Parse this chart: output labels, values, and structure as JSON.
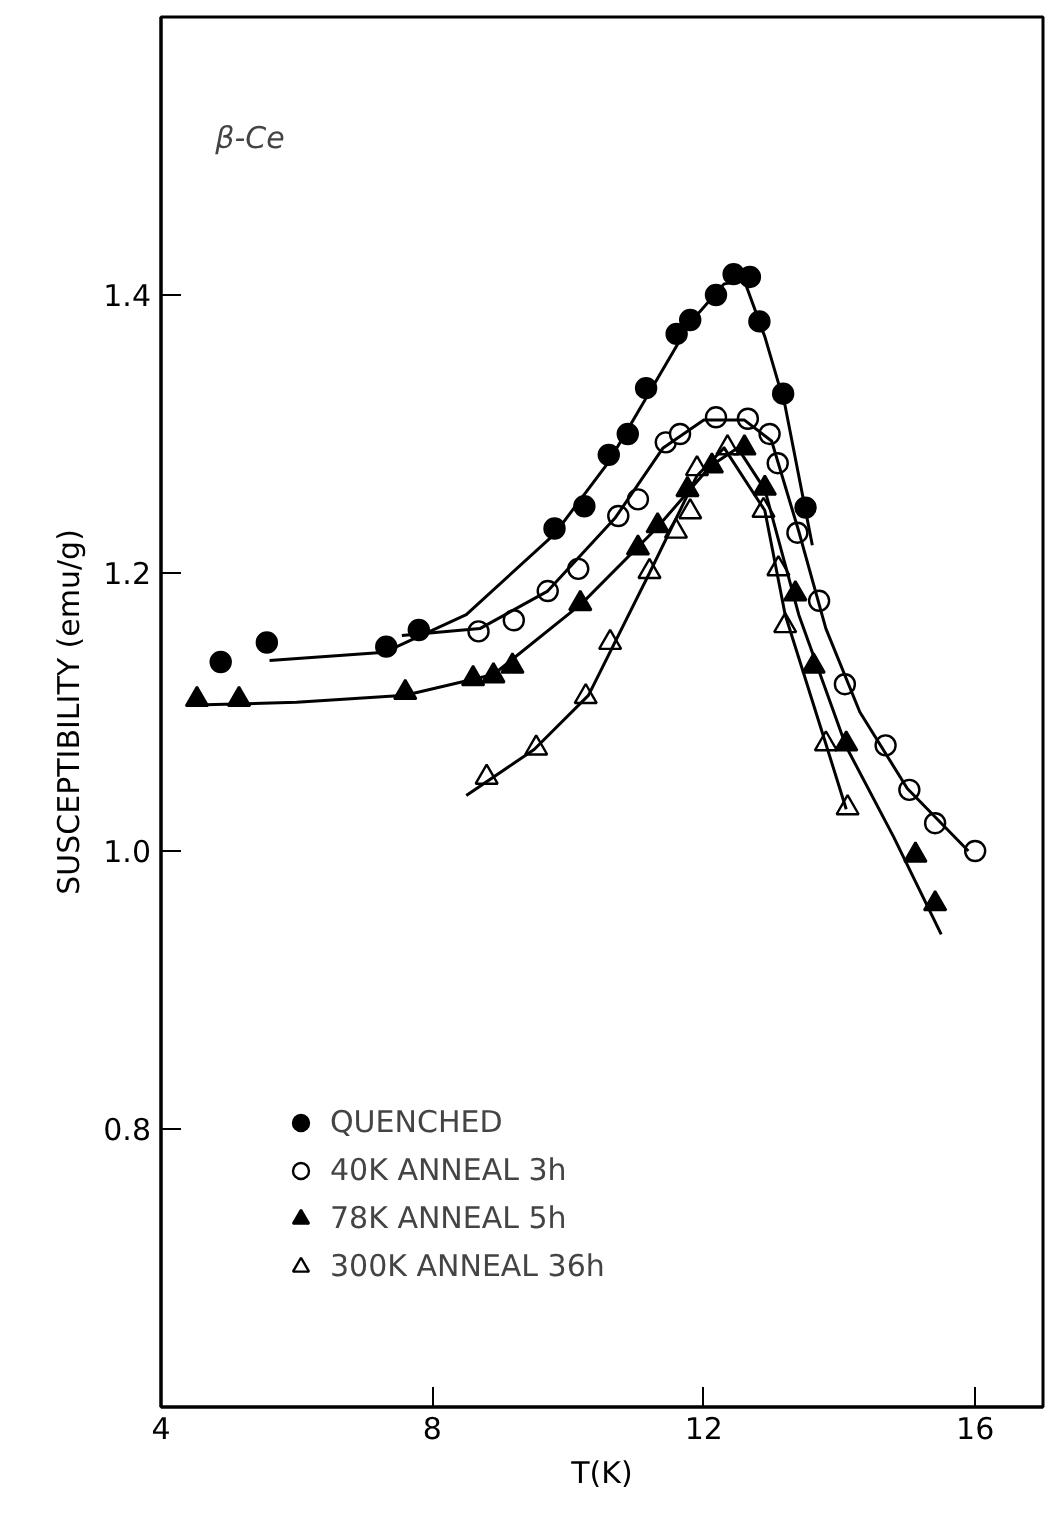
{
  "chart_data": {
    "type": "scatter",
    "xlabel": "T(K)",
    "ylabel": "SUSCEPTIBILITY (emu/g)",
    "annotations": [
      "β-Ce"
    ],
    "xlim": [
      4,
      17
    ],
    "ylim": [
      0.6,
      1.6
    ],
    "xticks": [
      4,
      8,
      12,
      16
    ],
    "yticks": [
      {
        "value": 0.8,
        "label": "0.8"
      },
      {
        "value": 1.0,
        "label": "1.0"
      },
      {
        "value": 1.2,
        "label": "1.2"
      },
      {
        "value": 1.4,
        "label": "1.4"
      }
    ],
    "grid": false,
    "legend": "bottom left",
    "series": [
      {
        "name": "QUENCHED",
        "color": "#000000",
        "marker": "circle",
        "x": [
          4.88,
          5.56,
          7.32,
          7.8,
          9.8,
          10.24,
          10.6,
          10.88,
          11.15,
          11.6,
          11.8,
          12.18,
          12.44,
          12.68,
          12.82,
          13.17,
          13.5
        ],
        "values": [
          1.136,
          1.15,
          1.147,
          1.159,
          1.232,
          1.248,
          1.285,
          1.3,
          1.333,
          1.372,
          1.382,
          1.4,
          1.415,
          1.413,
          1.381,
          1.329,
          1.247
        ]
      },
      {
        "name": "40K ANNEAL 3h",
        "color": "#ffffff",
        "marker": "circle",
        "x": [
          8.68,
          9.2,
          9.7,
          10.15,
          10.74,
          11.03,
          11.44,
          11.65,
          12.18,
          12.65,
          12.97,
          13.09,
          13.38,
          13.7,
          14.08,
          14.68,
          15.03,
          15.41,
          16.0
        ],
        "values": [
          1.158,
          1.166,
          1.187,
          1.203,
          1.241,
          1.253,
          1.294,
          1.3,
          1.312,
          1.311,
          1.3,
          1.279,
          1.229,
          1.18,
          1.12,
          1.076,
          1.044,
          1.02,
          1.0
        ]
      },
      {
        "name": "78K ANNEAL 5h",
        "color": "#000000",
        "marker": "triangle",
        "x": [
          4.53,
          5.15,
          7.6,
          8.6,
          8.9,
          9.18,
          10.18,
          11.03,
          11.32,
          11.76,
          12.12,
          12.6,
          12.9,
          13.35,
          13.62,
          14.1,
          15.12,
          15.41
        ],
        "values": [
          1.109,
          1.109,
          1.114,
          1.124,
          1.126,
          1.133,
          1.178,
          1.218,
          1.234,
          1.26,
          1.277,
          1.29,
          1.261,
          1.185,
          1.133,
          1.077,
          0.997,
          0.962
        ]
      },
      {
        "name": "300K ANNEAL 36h",
        "color": "#ffffff",
        "marker": "triangle",
        "x": [
          8.8,
          9.53,
          10.26,
          10.62,
          11.2,
          11.59,
          11.8,
          11.9,
          12.35,
          12.88,
          13.1,
          13.2,
          13.8,
          14.12
        ],
        "values": [
          1.053,
          1.074,
          1.111,
          1.15,
          1.201,
          1.23,
          1.244,
          1.275,
          1.29,
          1.245,
          1.203,
          1.162,
          1.077,
          1.031
        ]
      },
      {
        "type": "line",
        "color": "#000000",
        "x": [
          5.6,
          7.3,
          8.5,
          9.8,
          10.6,
          11.2,
          11.8,
          12.3,
          12.6,
          12.9,
          13.2,
          13.6
        ],
        "values": [
          1.137,
          1.143,
          1.17,
          1.228,
          1.28,
          1.33,
          1.38,
          1.408,
          1.41,
          1.37,
          1.32,
          1.22
        ]
      },
      {
        "type": "line",
        "color": "#000000",
        "x": [
          7.55,
          8.7,
          9.7,
          10.7,
          11.4,
          12.0,
          12.6,
          13.0,
          13.4,
          13.8,
          14.3,
          15.0,
          15.9
        ],
        "values": [
          1.155,
          1.16,
          1.187,
          1.24,
          1.29,
          1.31,
          1.31,
          1.295,
          1.23,
          1.16,
          1.1,
          1.045,
          1.0
        ]
      },
      {
        "type": "line",
        "color": "#000000",
        "x": [
          4.5,
          6,
          7.6,
          8.9,
          10.2,
          11.3,
          12.1,
          12.5,
          12.9,
          13.4,
          14.1,
          14.8,
          15.5
        ],
        "values": [
          1.105,
          1.107,
          1.112,
          1.127,
          1.178,
          1.232,
          1.277,
          1.29,
          1.26,
          1.17,
          1.075,
          1.01,
          0.94
        ]
      },
      {
        "type": "line",
        "color": "#000000",
        "x": [
          8.5,
          9.5,
          10.3,
          11.2,
          11.9,
          12.3,
          12.9,
          13.2,
          13.8,
          14.1
        ],
        "values": [
          1.04,
          1.073,
          1.112,
          1.2,
          1.27,
          1.29,
          1.245,
          1.17,
          1.077,
          1.03
        ]
      }
    ]
  }
}
